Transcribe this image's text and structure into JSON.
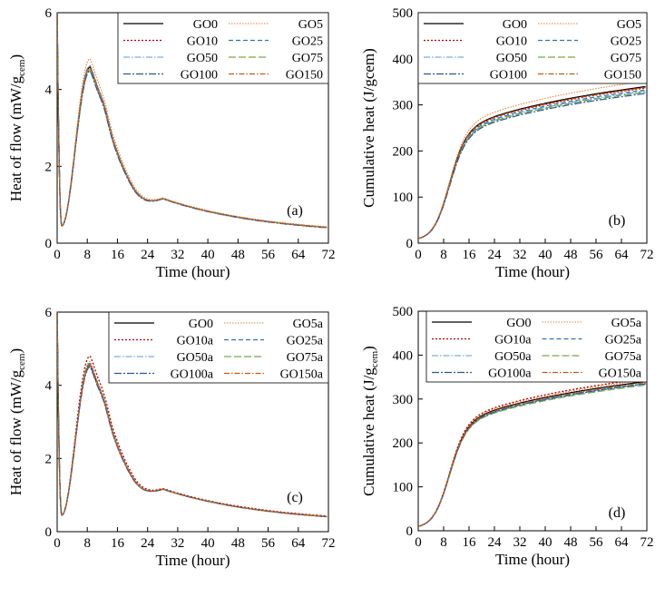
{
  "chart_data": [
    {
      "id": "a",
      "type": "line",
      "panel_label": "(a)",
      "xlabel": "Time (hour)",
      "ylabel": {
        "main": "Heat of flow (mW/g",
        "sub": "cem",
        "end": ")"
      },
      "xlim": [
        0,
        72
      ],
      "ylim": [
        0,
        6
      ],
      "xticks": [
        "0",
        "8",
        "16",
        "24",
        "32",
        "40",
        "48",
        "56",
        "64",
        "72"
      ],
      "yticks": [
        "0",
        "2",
        "4",
        "6"
      ],
      "kind": "flow",
      "series": [
        {
          "name": "GO0",
          "color": "#000000",
          "dash": "",
          "width": 1.3,
          "peak": 4.58,
          "tail": 0.22
        },
        {
          "name": "GO5",
          "color": "#ED7D31",
          "dash": "1.5 1.5",
          "width": 1.1,
          "peak": 4.8,
          "tail": 0.24
        },
        {
          "name": "GO10",
          "color": "#C00000",
          "dash": "2 2",
          "width": 1.3,
          "peak": 4.5,
          "tail": 0.22
        },
        {
          "name": "GO25",
          "color": "#2E75B6",
          "dash": "5 3",
          "width": 1.2,
          "peak": 4.62,
          "tail": 0.22
        },
        {
          "name": "GO50",
          "color": "#5B9BD5",
          "dash": "7 2 1.5 2",
          "width": 1.1,
          "peak": 4.55,
          "tail": 0.22
        },
        {
          "name": "GO75",
          "color": "#70AD47",
          "dash": "8 3",
          "width": 1.2,
          "peak": 4.52,
          "tail": 0.22
        },
        {
          "name": "GO100",
          "color": "#2F5597",
          "dash": "8 2 2 2",
          "width": 1.2,
          "peak": 4.48,
          "tail": 0.21
        },
        {
          "name": "GO150",
          "color": "#C55A11",
          "dash": "6 2 1.5 2",
          "width": 1.2,
          "peak": 4.6,
          "tail": 0.22
        }
      ]
    },
    {
      "id": "b",
      "type": "line",
      "panel_label": "(b)",
      "xlabel": "Time (hour)",
      "ylabel": {
        "main": "Cumulative heat (J/gcem)",
        "sub": "",
        "end": ""
      },
      "xlim": [
        0,
        72
      ],
      "ylim": [
        0,
        500
      ],
      "xticks": [
        "0",
        "8",
        "16",
        "24",
        "32",
        "40",
        "48",
        "56",
        "64",
        "72"
      ],
      "yticks": [
        "0",
        "100",
        "200",
        "300",
        "400",
        "500"
      ],
      "kind": "cumulative",
      "series": [
        {
          "name": "GO0",
          "color": "#000000",
          "dash": "",
          "width": 1.3,
          "final": 340
        },
        {
          "name": "GO5",
          "color": "#ED7D31",
          "dash": "1.5 1.5",
          "width": 1.1,
          "final": 352
        },
        {
          "name": "GO10",
          "color": "#C00000",
          "dash": "2 2",
          "width": 1.3,
          "final": 337
        },
        {
          "name": "GO25",
          "color": "#2E75B6",
          "dash": "5 3",
          "width": 1.2,
          "final": 333
        },
        {
          "name": "GO50",
          "color": "#5B9BD5",
          "dash": "7 2 1.5 2",
          "width": 1.1,
          "final": 330
        },
        {
          "name": "GO75",
          "color": "#70AD47",
          "dash": "8 3",
          "width": 1.2,
          "final": 328
        },
        {
          "name": "GO100",
          "color": "#2F5597",
          "dash": "8 2 2 2",
          "width": 1.2,
          "final": 325
        },
        {
          "name": "GO150",
          "color": "#C55A11",
          "dash": "6 2 1.5 2",
          "width": 1.2,
          "final": 338
        }
      ]
    },
    {
      "id": "c",
      "type": "line",
      "panel_label": "(c)",
      "xlabel": "Time (hour)",
      "ylabel": {
        "main": "Heat of flow (mW/g",
        "sub": "cem",
        "end": ")"
      },
      "xlim": [
        0,
        72
      ],
      "ylim": [
        0,
        6
      ],
      "xticks": [
        "0",
        "8",
        "16",
        "24",
        "32",
        "40",
        "48",
        "56",
        "64",
        "72"
      ],
      "yticks": [
        "0",
        "2",
        "4",
        "6"
      ],
      "kind": "flow",
      "series": [
        {
          "name": "GO0",
          "color": "#000000",
          "dash": "",
          "width": 1.3,
          "peak": 4.55,
          "tail": 0.22
        },
        {
          "name": "GO5a",
          "color": "#ED7D31",
          "dash": "1.5 1.5",
          "width": 1.1,
          "peak": 4.65,
          "tail": 0.23
        },
        {
          "name": "GO10a",
          "color": "#C00000",
          "dash": "2 2",
          "width": 1.3,
          "peak": 4.8,
          "tail": 0.24
        },
        {
          "name": "GO25a",
          "color": "#2E75B6",
          "dash": "5 3",
          "width": 1.2,
          "peak": 4.6,
          "tail": 0.22
        },
        {
          "name": "GO50a",
          "color": "#5B9BD5",
          "dash": "7 2 1.5 2",
          "width": 1.1,
          "peak": 4.57,
          "tail": 0.22
        },
        {
          "name": "GO75a",
          "color": "#70AD47",
          "dash": "8 3",
          "width": 1.2,
          "peak": 4.52,
          "tail": 0.22
        },
        {
          "name": "GO100a",
          "color": "#2F5597",
          "dash": "8 2 2 2",
          "width": 1.2,
          "peak": 4.5,
          "tail": 0.22
        },
        {
          "name": "GO150a",
          "color": "#C55A11",
          "dash": "6 2 1.5 2",
          "width": 1.2,
          "peak": 4.58,
          "tail": 0.22
        }
      ]
    },
    {
      "id": "d",
      "type": "line",
      "panel_label": "(d)",
      "xlabel": "Time (hour)",
      "ylabel": {
        "main": "Cumulative heat (J/g",
        "sub": "cem",
        "end": ")"
      },
      "xlim": [
        0,
        72
      ],
      "ylim": [
        0,
        500
      ],
      "xticks": [
        "0",
        "8",
        "16",
        "24",
        "32",
        "40",
        "48",
        "56",
        "64",
        "72"
      ],
      "yticks": [
        "0",
        "100",
        "200",
        "300",
        "400",
        "500"
      ],
      "kind": "cumulative",
      "series": [
        {
          "name": "GO0",
          "color": "#000000",
          "dash": "",
          "width": 1.3,
          "final": 340
        },
        {
          "name": "GO5a",
          "color": "#ED7D31",
          "dash": "1.5 1.5",
          "width": 1.1,
          "final": 344
        },
        {
          "name": "GO10a",
          "color": "#C00000",
          "dash": "2 2",
          "width": 1.3,
          "final": 347
        },
        {
          "name": "GO25a",
          "color": "#2E75B6",
          "dash": "5 3",
          "width": 1.2,
          "final": 336
        },
        {
          "name": "GO50a",
          "color": "#5B9BD5",
          "dash": "7 2 1.5 2",
          "width": 1.1,
          "final": 334
        },
        {
          "name": "GO75a",
          "color": "#70AD47",
          "dash": "8 3",
          "width": 1.2,
          "final": 332
        },
        {
          "name": "GO100a",
          "color": "#2F5597",
          "dash": "8 2 2 2",
          "width": 1.2,
          "final": 335
        },
        {
          "name": "GO150a",
          "color": "#C55A11",
          "dash": "6 2 1.5 2",
          "width": 1.2,
          "final": 338
        }
      ]
    }
  ]
}
